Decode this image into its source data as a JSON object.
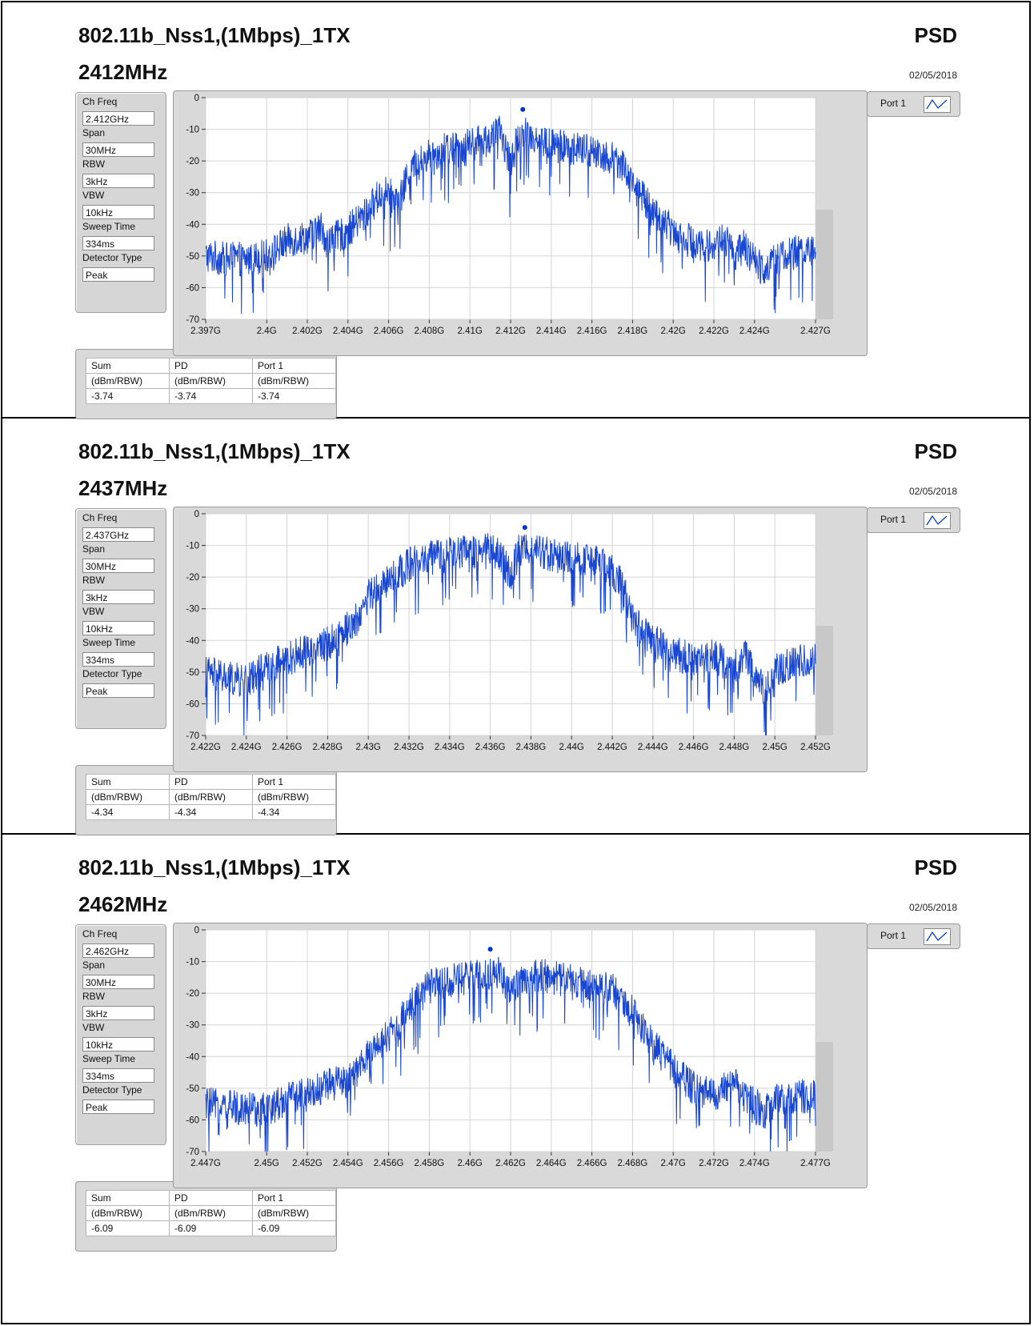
{
  "panels": [
    {
      "title": "802.11b_Nss1,(1Mbps)_1TX",
      "freq": "2412MHz",
      "psd": "PSD",
      "date": "02/05/2018",
      "params": [
        {
          "label": "Ch Freq",
          "value": "2.412GHz"
        },
        {
          "label": "Span",
          "value": "30MHz"
        },
        {
          "label": "RBW",
          "value": "3kHz"
        },
        {
          "label": "VBW",
          "value": "10kHz"
        },
        {
          "label": "Sweep Time",
          "value": "334ms"
        },
        {
          "label": "Detector Type",
          "value": "Peak"
        }
      ],
      "legend": "Port 1",
      "table": {
        "headers": [
          "Sum",
          "PD",
          "Port 1"
        ],
        "units": [
          "(dBm/RBW)",
          "(dBm/RBW)",
          "(dBm/RBW)"
        ],
        "values": [
          "-3.74",
          "-3.74",
          "-3.74"
        ]
      }
    },
    {
      "title": "802.11b_Nss1,(1Mbps)_1TX",
      "freq": "2437MHz",
      "psd": "PSD",
      "date": "02/05/2018",
      "params": [
        {
          "label": "Ch Freq",
          "value": "2.437GHz"
        },
        {
          "label": "Span",
          "value": "30MHz"
        },
        {
          "label": "RBW",
          "value": "3kHz"
        },
        {
          "label": "VBW",
          "value": "10kHz"
        },
        {
          "label": "Sweep Time",
          "value": "334ms"
        },
        {
          "label": "Detector Type",
          "value": "Peak"
        }
      ],
      "legend": "Port 1",
      "table": {
        "headers": [
          "Sum",
          "PD",
          "Port 1"
        ],
        "units": [
          "(dBm/RBW)",
          "(dBm/RBW)",
          "(dBm/RBW)"
        ],
        "values": [
          "-4.34",
          "-4.34",
          "-4.34"
        ]
      }
    },
    {
      "title": "802.11b_Nss1,(1Mbps)_1TX",
      "freq": "2462MHz",
      "psd": "PSD",
      "date": "02/05/2018",
      "params": [
        {
          "label": "Ch Freq",
          "value": "2.462GHz"
        },
        {
          "label": "Span",
          "value": "30MHz"
        },
        {
          "label": "RBW",
          "value": "3kHz"
        },
        {
          "label": "VBW",
          "value": "10kHz"
        },
        {
          "label": "Sweep Time",
          "value": "334ms"
        },
        {
          "label": "Detector Type",
          "value": "Peak"
        }
      ],
      "legend": "Port 1",
      "table": {
        "headers": [
          "Sum",
          "PD",
          "Port 1"
        ],
        "units": [
          "(dBm/RBW)",
          "(dBm/RBW)",
          "(dBm/RBW)"
        ],
        "values": [
          "-6.09",
          "-6.09",
          "-6.09"
        ]
      }
    }
  ],
  "colors": {
    "trace": "#0033cc",
    "grid": "#d4d4d4"
  },
  "chart_data": [
    {
      "type": "line",
      "title": "",
      "xlabel": "",
      "ylabel": "",
      "xlim": [
        2.397,
        2.427
      ],
      "ylim": [
        -70,
        0
      ],
      "grid": true,
      "xticks": [
        "2.397G",
        "2.4G",
        "2.402G",
        "2.404G",
        "2.406G",
        "2.408G",
        "2.41G",
        "2.412G",
        "2.414G",
        "2.416G",
        "2.418G",
        "2.42G",
        "2.422G",
        "2.424G",
        "2.427G"
      ],
      "xtick_values": [
        2.397,
        2.4,
        2.402,
        2.404,
        2.406,
        2.408,
        2.41,
        2.412,
        2.414,
        2.416,
        2.418,
        2.42,
        2.422,
        2.424,
        2.427
      ],
      "yticks": [
        "0",
        "-10",
        "-20",
        "-30",
        "-40",
        "-50",
        "-60",
        "-70"
      ],
      "ytick_values": [
        0,
        -10,
        -20,
        -30,
        -40,
        -50,
        -60,
        -70
      ],
      "series": [
        {
          "name": "Port 1",
          "x": [
            2.397,
            2.398,
            2.399,
            2.4,
            2.4011,
            2.402,
            2.4027,
            2.403,
            2.404,
            2.405,
            2.4055,
            2.406,
            2.4065,
            2.407,
            2.408,
            2.409,
            2.41,
            2.411,
            2.4115,
            2.412,
            2.4125,
            2.413,
            2.414,
            2.415,
            2.416,
            2.417,
            2.4175,
            2.418,
            2.419,
            2.42,
            2.421,
            2.422,
            2.4225,
            2.423,
            2.4235,
            2.424,
            2.4245,
            2.425,
            2.426,
            2.427
          ],
          "y": [
            -50,
            -51,
            -51,
            -50,
            -45,
            -44,
            -41,
            -46,
            -42,
            -36,
            -31,
            -30,
            -34,
            -23,
            -18,
            -16,
            -15,
            -13,
            -11,
            -21,
            -10,
            -12,
            -15,
            -16,
            -17,
            -19,
            -21,
            -27,
            -36,
            -42,
            -46,
            -47,
            -44,
            -50,
            -47,
            -52,
            -54,
            -51,
            -49,
            -48
          ],
          "peak": {
            "x": 2.4126,
            "y": -3.74
          }
        }
      ]
    },
    {
      "type": "line",
      "title": "",
      "xlabel": "",
      "ylabel": "",
      "xlim": [
        2.422,
        2.452
      ],
      "ylim": [
        -70,
        0
      ],
      "grid": true,
      "xticks": [
        "2.422G",
        "2.424G",
        "2.426G",
        "2.428G",
        "2.43G",
        "2.432G",
        "2.434G",
        "2.436G",
        "2.438G",
        "2.44G",
        "2.442G",
        "2.444G",
        "2.446G",
        "2.448G",
        "2.45G",
        "2.452G"
      ],
      "xtick_values": [
        2.422,
        2.424,
        2.426,
        2.428,
        2.43,
        2.432,
        2.434,
        2.436,
        2.438,
        2.44,
        2.442,
        2.444,
        2.446,
        2.448,
        2.45,
        2.452
      ],
      "yticks": [
        "0",
        "-10",
        "-20",
        "-30",
        "-40",
        "-50",
        "-60",
        "-70"
      ],
      "ytick_values": [
        0,
        -10,
        -20,
        -30,
        -40,
        -50,
        -60,
        -70
      ],
      "series": [
        {
          "name": "Port 1",
          "x": [
            2.422,
            2.423,
            2.424,
            2.425,
            2.426,
            2.427,
            2.428,
            2.429,
            2.4295,
            2.43,
            2.431,
            2.432,
            2.433,
            2.434,
            2.435,
            2.436,
            2.4365,
            2.437,
            2.4375,
            2.438,
            2.439,
            2.44,
            2.441,
            2.442,
            2.4425,
            2.443,
            2.444,
            2.445,
            2.446,
            2.447,
            2.448,
            2.4485,
            2.449,
            2.4495,
            2.45,
            2.451,
            2.452
          ],
          "y": [
            -50,
            -52,
            -53,
            -48,
            -46,
            -43,
            -41,
            -36,
            -33,
            -26,
            -21,
            -16,
            -14,
            -13,
            -12,
            -11,
            -13,
            -20,
            -10,
            -11,
            -13,
            -14,
            -15,
            -18,
            -23,
            -33,
            -40,
            -44,
            -46,
            -45,
            -49,
            -44,
            -50,
            -57,
            -49,
            -47,
            -46
          ],
          "peak": {
            "x": 2.4377,
            "y": -4.34
          }
        }
      ]
    },
    {
      "type": "line",
      "title": "",
      "xlabel": "",
      "ylabel": "",
      "xlim": [
        2.447,
        2.477
      ],
      "ylim": [
        -70,
        0
      ],
      "grid": true,
      "xticks": [
        "2.447G",
        "2.45G",
        "2.452G",
        "2.454G",
        "2.456G",
        "2.458G",
        "2.46G",
        "2.462G",
        "2.464G",
        "2.466G",
        "2.468G",
        "2.47G",
        "2.472G",
        "2.474G",
        "2.477G"
      ],
      "xtick_values": [
        2.447,
        2.45,
        2.452,
        2.454,
        2.456,
        2.458,
        2.46,
        2.462,
        2.464,
        2.466,
        2.468,
        2.47,
        2.472,
        2.474,
        2.477
      ],
      "yticks": [
        "0",
        "-10",
        "-20",
        "-30",
        "-40",
        "-50",
        "-60",
        "-70"
      ],
      "ytick_values": [
        0,
        -10,
        -20,
        -30,
        -40,
        -50,
        -60,
        -70
      ],
      "series": [
        {
          "name": "Port 1",
          "x": [
            2.447,
            2.448,
            2.449,
            2.45,
            2.451,
            2.452,
            2.453,
            2.454,
            2.455,
            2.456,
            2.4565,
            2.457,
            2.458,
            2.459,
            2.46,
            2.461,
            2.4615,
            2.462,
            2.463,
            2.464,
            2.465,
            2.466,
            2.467,
            2.468,
            2.469,
            2.47,
            2.471,
            2.472,
            2.473,
            2.474,
            2.4745,
            2.475,
            2.476,
            2.477
          ],
          "y": [
            -55,
            -56,
            -56,
            -57,
            -53,
            -52,
            -49,
            -48,
            -40,
            -33,
            -30,
            -24,
            -18,
            -16,
            -15,
            -14,
            -13,
            -20,
            -14,
            -15,
            -16,
            -17,
            -19,
            -26,
            -36,
            -44,
            -50,
            -52,
            -49,
            -55,
            -58,
            -54,
            -53,
            -52
          ],
          "peak": {
            "x": 2.461,
            "y": -6.09
          }
        }
      ]
    }
  ]
}
